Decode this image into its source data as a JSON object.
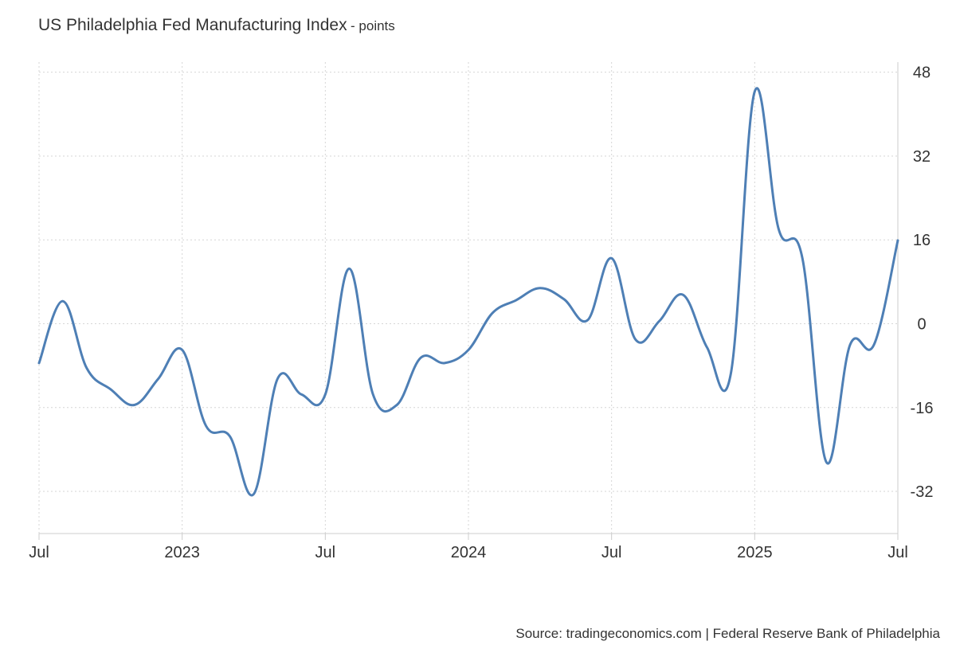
{
  "header": {
    "title": "US Philadelphia Fed Manufacturing Index",
    "subtitle": "- points"
  },
  "source": "Source: tradingeconomics.com | Federal Reserve Bank of Philadelphia",
  "chart_data": {
    "type": "line",
    "title": "US Philadelphia Fed Manufacturing Index",
    "subtitle": "- points",
    "xlabel": "",
    "ylabel": "",
    "x": [
      "2022-07",
      "2022-08",
      "2022-09",
      "2022-10",
      "2022-11",
      "2022-12",
      "2023-01",
      "2023-02",
      "2023-03",
      "2023-04",
      "2023-05",
      "2023-06",
      "2023-07",
      "2023-08",
      "2023-09",
      "2023-10",
      "2023-11",
      "2023-12",
      "2024-01",
      "2024-02",
      "2024-03",
      "2024-04",
      "2024-05",
      "2024-06",
      "2024-07",
      "2024-08",
      "2024-09",
      "2024-10",
      "2024-11",
      "2024-12",
      "2025-01",
      "2025-02",
      "2025-03",
      "2025-04",
      "2025-05",
      "2025-06",
      "2025-07"
    ],
    "series": [
      {
        "values": [
          -7.5,
          4.3,
          -8.5,
          -12.5,
          -15.5,
          -10.5,
          -5.0,
          -19.5,
          -21.5,
          -32.5,
          -10.5,
          -13.5,
          -13.5,
          10.5,
          -13.5,
          -15.5,
          -6.5,
          -7.5,
          -5.0,
          2.0,
          4.5,
          6.8,
          4.7,
          0.7,
          12.5,
          -3.0,
          0.5,
          5.5,
          -4.5,
          -9.5,
          44.3,
          18.1,
          12.5,
          -26.4,
          -4.0,
          -4.0,
          15.9
        ],
        "color": "#4e7fb5"
      }
    ],
    "yticks": [
      48,
      32,
      16,
      0,
      -16,
      -32
    ],
    "ylim": [
      -40,
      50
    ],
    "xticks": [
      {
        "label": "Jul",
        "at": "2022-07"
      },
      {
        "label": "2023",
        "at": "2023-01"
      },
      {
        "label": "Jul",
        "at": "2023-07"
      },
      {
        "label": "2024",
        "at": "2024-01"
      },
      {
        "label": "Jul",
        "at": "2024-07"
      },
      {
        "label": "2025",
        "at": "2025-01"
      },
      {
        "label": "Jul",
        "at": "2025-07"
      }
    ],
    "y_axis_side": "right",
    "grid": true,
    "legend": "none"
  }
}
